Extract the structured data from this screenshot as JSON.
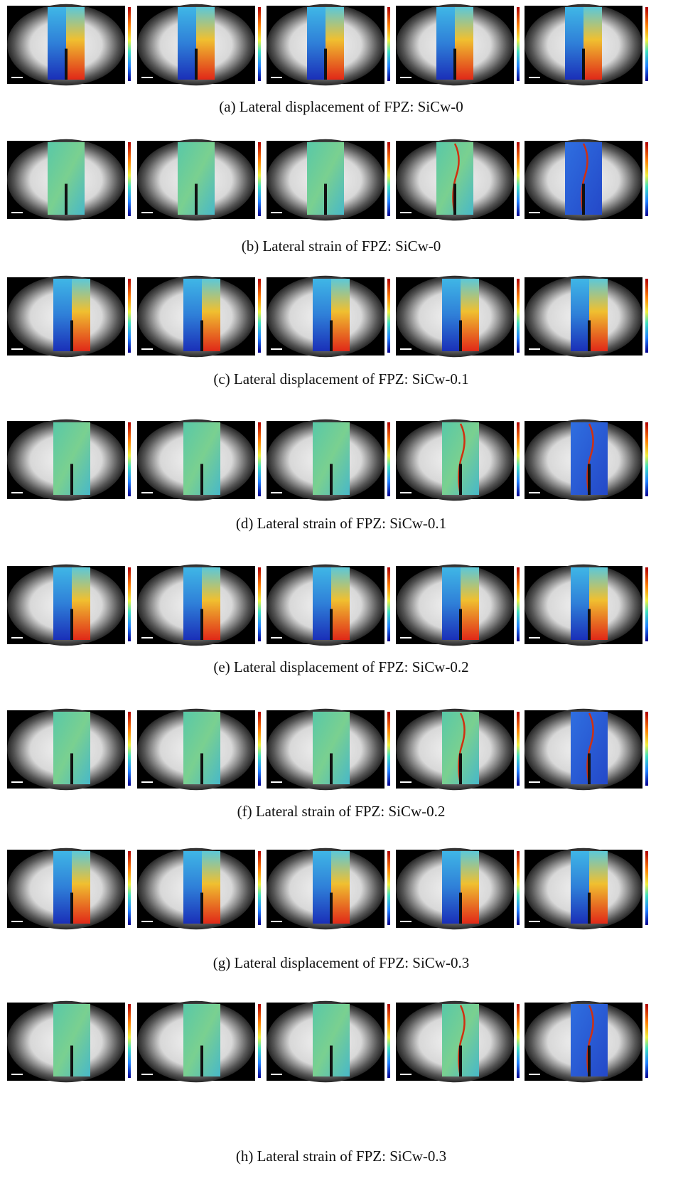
{
  "captions": [
    "(a) Lateral displacement of FPZ: SiCw-0",
    "(b) Lateral strain of FPZ: SiCw-0",
    "(c) Lateral displacement of FPZ: SiCw-0.1",
    "(d) Lateral strain of FPZ: SiCw-0.1",
    "(e) Lateral displacement of FPZ: SiCw-0.2",
    "(f) Lateral strain of FPZ: SiCw-0.2",
    "(g) Lateral displacement of FPZ: SiCw-0.3",
    "(h) Lateral strain of FPZ: SiCw-0.3"
  ]
}
